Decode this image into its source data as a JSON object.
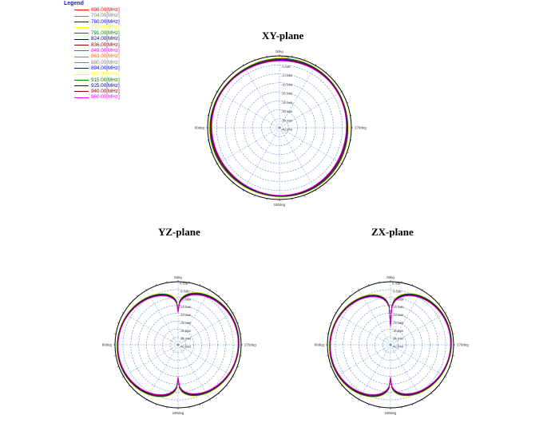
{
  "legend": {
    "title": "Legend",
    "items": [
      {
        "label": "698.00[MHz]",
        "color": "#ff0000"
      },
      {
        "label": "704.00[MHz]",
        "color": "#808080"
      },
      {
        "label": "760.00[MHz]",
        "color": "#0000ff"
      },
      {
        "label": "776.00[MHz]",
        "color": "#ffff00"
      },
      {
        "label": "791.00[MHz]",
        "color": "#008000"
      },
      {
        "label": "824.00[MHz]",
        "color": "#000080"
      },
      {
        "label": "836.00[MHz]",
        "color": "#800000"
      },
      {
        "label": "849.00[MHz]",
        "color": "#ff00ff"
      },
      {
        "label": "863.00[MHz]",
        "color": "#ff6600"
      },
      {
        "label": "880.00[MHz]",
        "color": "#808080"
      },
      {
        "label": "894.00[MHz]",
        "color": "#0000ff"
      },
      {
        "label": "902.00[MHz]",
        "color": "#ffff00"
      },
      {
        "label": "915.00[MHz]",
        "color": "#008000"
      },
      {
        "label": "925.00[MHz]",
        "color": "#000080"
      },
      {
        "label": "940.00[MHz]",
        "color": "#800000"
      },
      {
        "label": "960.00[MHz]",
        "color": "#ff00ff"
      }
    ]
  },
  "chart_data": [
    {
      "type": "polar",
      "title": "XY-plane",
      "tick_labels": {
        "top": "0deg",
        "right": "270deg",
        "bottom": "180deg",
        "left": "90deg"
      },
      "radial_labels": [
        "0.0dB",
        "-5.0dB",
        "-10.0dB",
        "-15.0dB",
        "-20.0dB",
        "-25.0dB",
        "-30.0dB",
        "-35.0dB",
        "-40.0dB"
      ],
      "rlim_db": [
        -40,
        0
      ],
      "pattern": "omni",
      "gain_db": [
        -1.4,
        -1.6,
        -1.9,
        -2.1,
        -2.3,
        -2.5,
        -2.2,
        -2.0,
        -1.8,
        -1.7,
        -1.5,
        -1.3,
        -1.6,
        -1.9,
        -2.3,
        -2.6
      ]
    },
    {
      "type": "polar",
      "title": "YZ-plane",
      "tick_labels": {
        "top": "0deg",
        "right": "270deg",
        "bottom": "180deg",
        "left": "90deg"
      },
      "radial_labels": [
        "0.0dB",
        "-5.0dB",
        "-10.0dB",
        "-15.0dB",
        "-20.0dB",
        "-25.0dB",
        "-30.0dB",
        "-35.0dB",
        "-40.0dB"
      ],
      "rlim_db": [
        -40,
        0
      ],
      "pattern": "dipole",
      "null_db": [
        -17,
        -17
      ],
      "gain_db": [
        -1.4,
        -1.6,
        -1.9,
        -2.1,
        -2.3,
        -2.5,
        -2.2,
        -2.0,
        -1.8,
        -1.7,
        -1.5,
        -1.3,
        -1.6,
        -1.9,
        -2.3,
        -2.6
      ]
    },
    {
      "type": "polar",
      "title": "ZX-plane",
      "tick_labels": {
        "top": "0deg",
        "right": "270deg",
        "bottom": "180deg",
        "left": "90deg"
      },
      "radial_labels": [
        "0.0dB",
        "-5.0dB",
        "-10.0dB",
        "-15.0dB",
        "-20.0dB",
        "-25.0dB",
        "-30.0dB",
        "-35.0dB",
        "-40.0dB"
      ],
      "rlim_db": [
        -40,
        0
      ],
      "pattern": "dipole",
      "null_db": [
        -26,
        -17
      ],
      "gain_db": [
        -1.4,
        -1.6,
        -1.9,
        -2.1,
        -2.3,
        -2.5,
        -2.2,
        -2.0,
        -1.8,
        -1.7,
        -1.5,
        -1.3,
        -1.6,
        -1.9,
        -2.3,
        -2.6
      ]
    }
  ]
}
